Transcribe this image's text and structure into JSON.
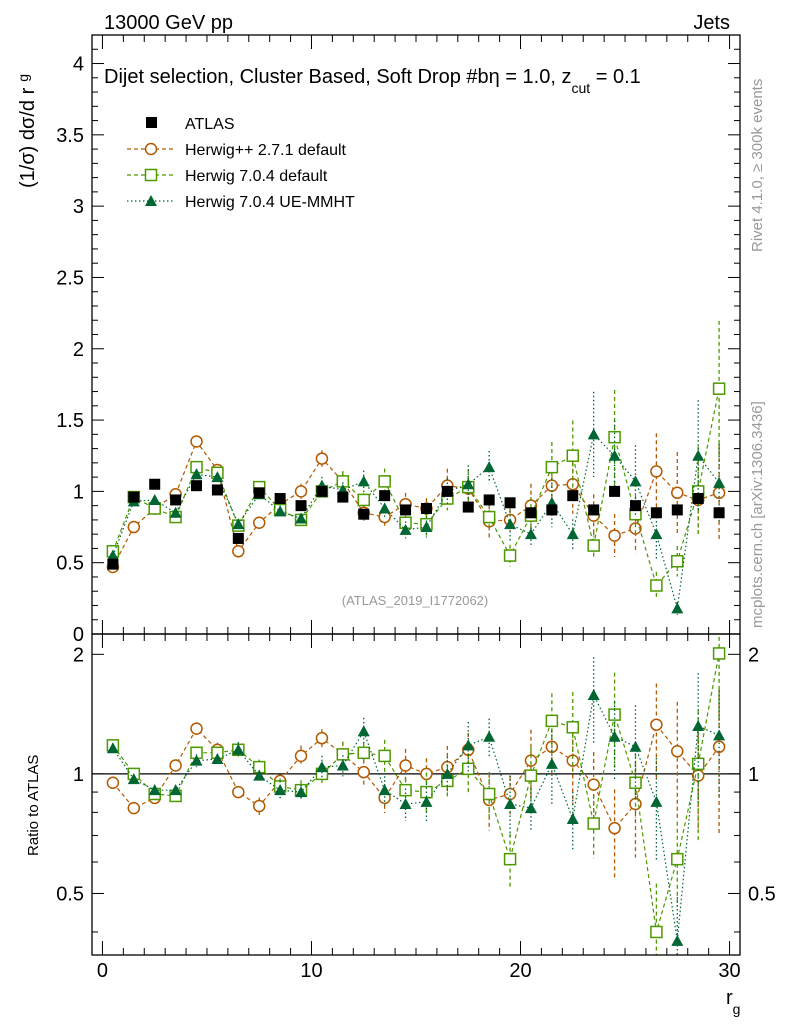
{
  "header": {
    "energy": "13000 GeV pp",
    "category": "Jets",
    "plot_title": "Dijet selection, Cluster Based, Soft Drop #b",
    "beta_part": "η = 1.0, z",
    "zcut_sub": "cut",
    "zcut_value": " = 0.1",
    "rivet": "Rivet 4.1.0, ≥ 300k events",
    "mcplots": "mcplots.cern.ch [arXiv:1306.3436]",
    "analysis": "(ATLAS_2019_I1772062)"
  },
  "colors": {
    "atlas": "#000000",
    "herwigpp": "#b35900",
    "herwig704": "#4d9900",
    "uemmht": "#006633"
  },
  "chart_data": [
    {
      "type": "scatter",
      "panel": "main",
      "xlabel": "r",
      "xlabel_sub": "g",
      "ylabel": "(1/σ) dσ/d r",
      "ylabel_sub": "g",
      "xlim": [
        -0.5,
        30.5
      ],
      "ylim": [
        0,
        4.2
      ],
      "yticks": [
        0.5,
        1,
        1.5,
        2,
        2.5,
        3,
        3.5,
        4
      ],
      "ytick_labels": [
        "0.5",
        "1",
        "1.5",
        "2",
        "2.5",
        "3",
        "3.5",
        "4"
      ],
      "ybottom_label": "0",
      "x": [
        0.5,
        1.5,
        2.5,
        3.5,
        4.5,
        5.5,
        6.5,
        7.5,
        8.5,
        9.5,
        10.5,
        11.5,
        12.5,
        13.5,
        14.5,
        15.5,
        16.5,
        17.5,
        18.5,
        19.5,
        20.5,
        21.5,
        22.5,
        23.5,
        24.5,
        25.5,
        26.5,
        27.5,
        28.5,
        29.5
      ],
      "legend": [
        "ATLAS",
        "Herwig++ 2.7.1 default",
        "Herwig 7.0.4 default",
        "Herwig 7.0.4 UE-MMHT"
      ],
      "series": [
        {
          "name": "ATLAS",
          "marker": "square-filled",
          "line": "none",
          "values": [
            0.49,
            0.96,
            1.05,
            0.94,
            1.04,
            1.01,
            0.67,
            0.99,
            0.95,
            0.9,
            1.0,
            0.96,
            0.84,
            0.97,
            0.87,
            0.88,
            1.0,
            0.89,
            0.94,
            0.92,
            0.85,
            0.87,
            0.97,
            0.87,
            1.0,
            0.9,
            0.85,
            0.87,
            0.95,
            0.85
          ],
          "errors": [
            0.02,
            0.02,
            0.02,
            0.02,
            0.02,
            0.02,
            0.02,
            0.02,
            0.02,
            0.02,
            0.02,
            0.02,
            0.03,
            0.03,
            0.03,
            0.03,
            0.03,
            0.03,
            0.03,
            0.03,
            0.03,
            0.03,
            0.03,
            0.03,
            0.03,
            0.03,
            0.03,
            0.03,
            0.03,
            0.03
          ]
        },
        {
          "name": "Herwig++ 2.7.1 default",
          "marker": "circle-open",
          "line": "dashed",
          "values": [
            0.47,
            0.75,
            0.88,
            0.98,
            1.35,
            1.15,
            0.58,
            0.78,
            0.91,
            1.0,
            1.23,
            1.07,
            0.85,
            0.82,
            0.91,
            0.88,
            1.04,
            1.02,
            0.79,
            0.8,
            0.9,
            1.04,
            1.05,
            0.83,
            0.69,
            0.74,
            1.14,
            0.99,
            0.94,
            0.99
          ],
          "errors": [
            0.02,
            0.03,
            0.03,
            0.03,
            0.03,
            0.03,
            0.03,
            0.03,
            0.03,
            0.03,
            0.04,
            0.04,
            0.04,
            0.05,
            0.05,
            0.05,
            0.06,
            0.06,
            0.07,
            0.07,
            0.08,
            0.08,
            0.09,
            0.1,
            0.1,
            0.1,
            0.12,
            0.12,
            0.14,
            0.16
          ]
        },
        {
          "name": "Herwig 7.0.4 default",
          "marker": "square-open",
          "line": "dashed",
          "values": [
            0.58,
            0.96,
            0.88,
            0.82,
            1.17,
            1.13,
            0.76,
            1.03,
            0.87,
            0.8,
            1.0,
            1.07,
            0.94,
            1.07,
            0.78,
            0.77,
            0.95,
            1.03,
            0.82,
            0.55,
            0.83,
            1.17,
            1.25,
            0.62,
            1.38,
            0.84,
            0.34,
            0.51,
            1.0,
            1.72
          ]
        },
        {
          "name": "Herwig 7.0.4 UE-MMHT",
          "marker": "triangle-filled",
          "line": "dotted",
          "values": [
            0.55,
            0.93,
            0.94,
            0.85,
            1.12,
            1.1,
            0.77,
            0.98,
            0.86,
            0.81,
            1.04,
            1.01,
            1.07,
            0.88,
            0.73,
            0.75,
            1.0,
            1.05,
            1.17,
            0.77,
            0.7,
            0.92,
            0.7,
            1.4,
            1.25,
            1.07,
            0.7,
            0.18,
            1.25,
            1.06
          ]
        }
      ]
    },
    {
      "type": "scatter",
      "panel": "ratio",
      "ylabel": "Ratio to ATLAS",
      "xlabel": "r",
      "xlabel_sub": "g",
      "xlim": [
        -0.5,
        30.5
      ],
      "ylim": [
        0.35,
        2.25
      ],
      "reference_line": 1,
      "yticks": [
        0.5,
        1,
        2
      ],
      "ytick_labels": [
        "0.5",
        "1",
        "2"
      ],
      "xticks": [
        0,
        10,
        20,
        30
      ],
      "xtick_labels": [
        "0",
        "10",
        "20",
        "30"
      ],
      "series": [
        {
          "name": "Herwig++ 2.7.1 default",
          "values": [
            0.95,
            0.82,
            0.87,
            1.05,
            1.3,
            1.15,
            0.9,
            0.83,
            0.96,
            1.11,
            1.23,
            1.12,
            1.01,
            0.87,
            1.05,
            1.0,
            1.04,
            1.15,
            0.86,
            0.89,
            1.08,
            1.17,
            1.08,
            0.94,
            0.73,
            0.84,
            1.33,
            1.14,
            0.99,
            1.17
          ]
        },
        {
          "name": "Herwig 7.0.4 default",
          "values": [
            1.18,
            1.0,
            0.89,
            0.88,
            1.13,
            1.13,
            1.15,
            1.04,
            0.93,
            0.91,
            1.0,
            1.12,
            1.13,
            1.11,
            0.91,
            0.9,
            0.96,
            1.03,
            0.89,
            0.61,
            0.99,
            1.36,
            1.31,
            0.75,
            1.41,
            0.95,
            0.4,
            0.61,
            1.06,
            2.01
          ]
        },
        {
          "name": "Herwig 7.0.4 UE-MMHT",
          "values": [
            1.16,
            0.97,
            0.91,
            0.91,
            1.08,
            1.09,
            1.15,
            0.99,
            0.91,
            0.9,
            1.04,
            1.05,
            1.28,
            0.91,
            0.84,
            0.85,
            1.0,
            1.18,
            1.24,
            0.84,
            0.82,
            1.06,
            0.77,
            1.58,
            1.24,
            1.17,
            0.85,
            0.38,
            1.32,
            1.25
          ]
        }
      ]
    }
  ]
}
